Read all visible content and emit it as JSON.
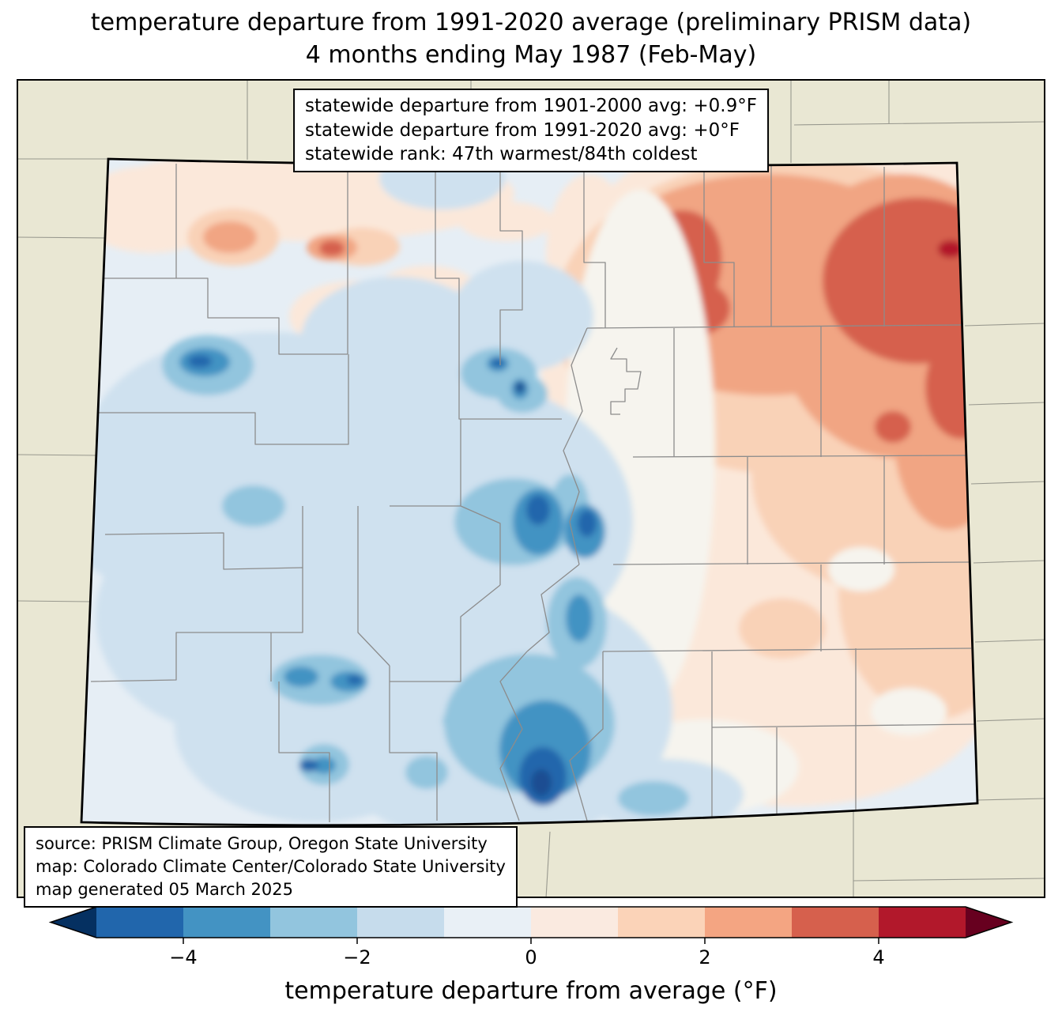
{
  "title": {
    "line1": "temperature departure from 1991-2020 average (preliminary PRISM data)",
    "line2": "4 months ending May 1987 (Feb-May)"
  },
  "stats_box": {
    "lines": [
      "statewide departure from 1901-2000 avg: +0.9°F",
      "statewide departure from 1991-2020 avg: +0°F",
      "statewide rank: 47th warmest/84th coldest"
    ]
  },
  "source_box": {
    "lines": [
      "source: PRISM Climate Group, Oregon State University",
      "map: Colorado Climate Center/Colorado State University",
      "map generated 05 March 2025"
    ]
  },
  "colorbar": {
    "label": "temperature departure from average (°F)",
    "ticks": [
      "−4",
      "−2",
      "0",
      "2",
      "4"
    ],
    "range_min": -5,
    "range_max": 5,
    "segments": [
      "#2166ac",
      "#4393c3",
      "#92c5de",
      "#c6dcec",
      "#e9f0f6",
      "#faeae0",
      "#fbd3b8",
      "#f4a582",
      "#d6604d",
      "#b2182b"
    ],
    "arrow_left": "#053061",
    "arrow_right": "#67001f"
  },
  "palette": {
    "outside": "#e9e7d3",
    "base": "#e6eef5",
    "lb1": "#cfe1ef",
    "b2": "#92c5de",
    "b3": "#4393c3",
    "b4": "#2166ac",
    "b5": "#1a4e92",
    "w0": "#f6f4ee",
    "p1": "#fbe8da",
    "p2": "#f9d2b7",
    "p3": "#f1a583",
    "p4": "#d6604d",
    "p5": "#b2182b",
    "county_line": "#8c8c8c",
    "neighbor_line": "#98988e",
    "state_border": "#000000"
  }
}
